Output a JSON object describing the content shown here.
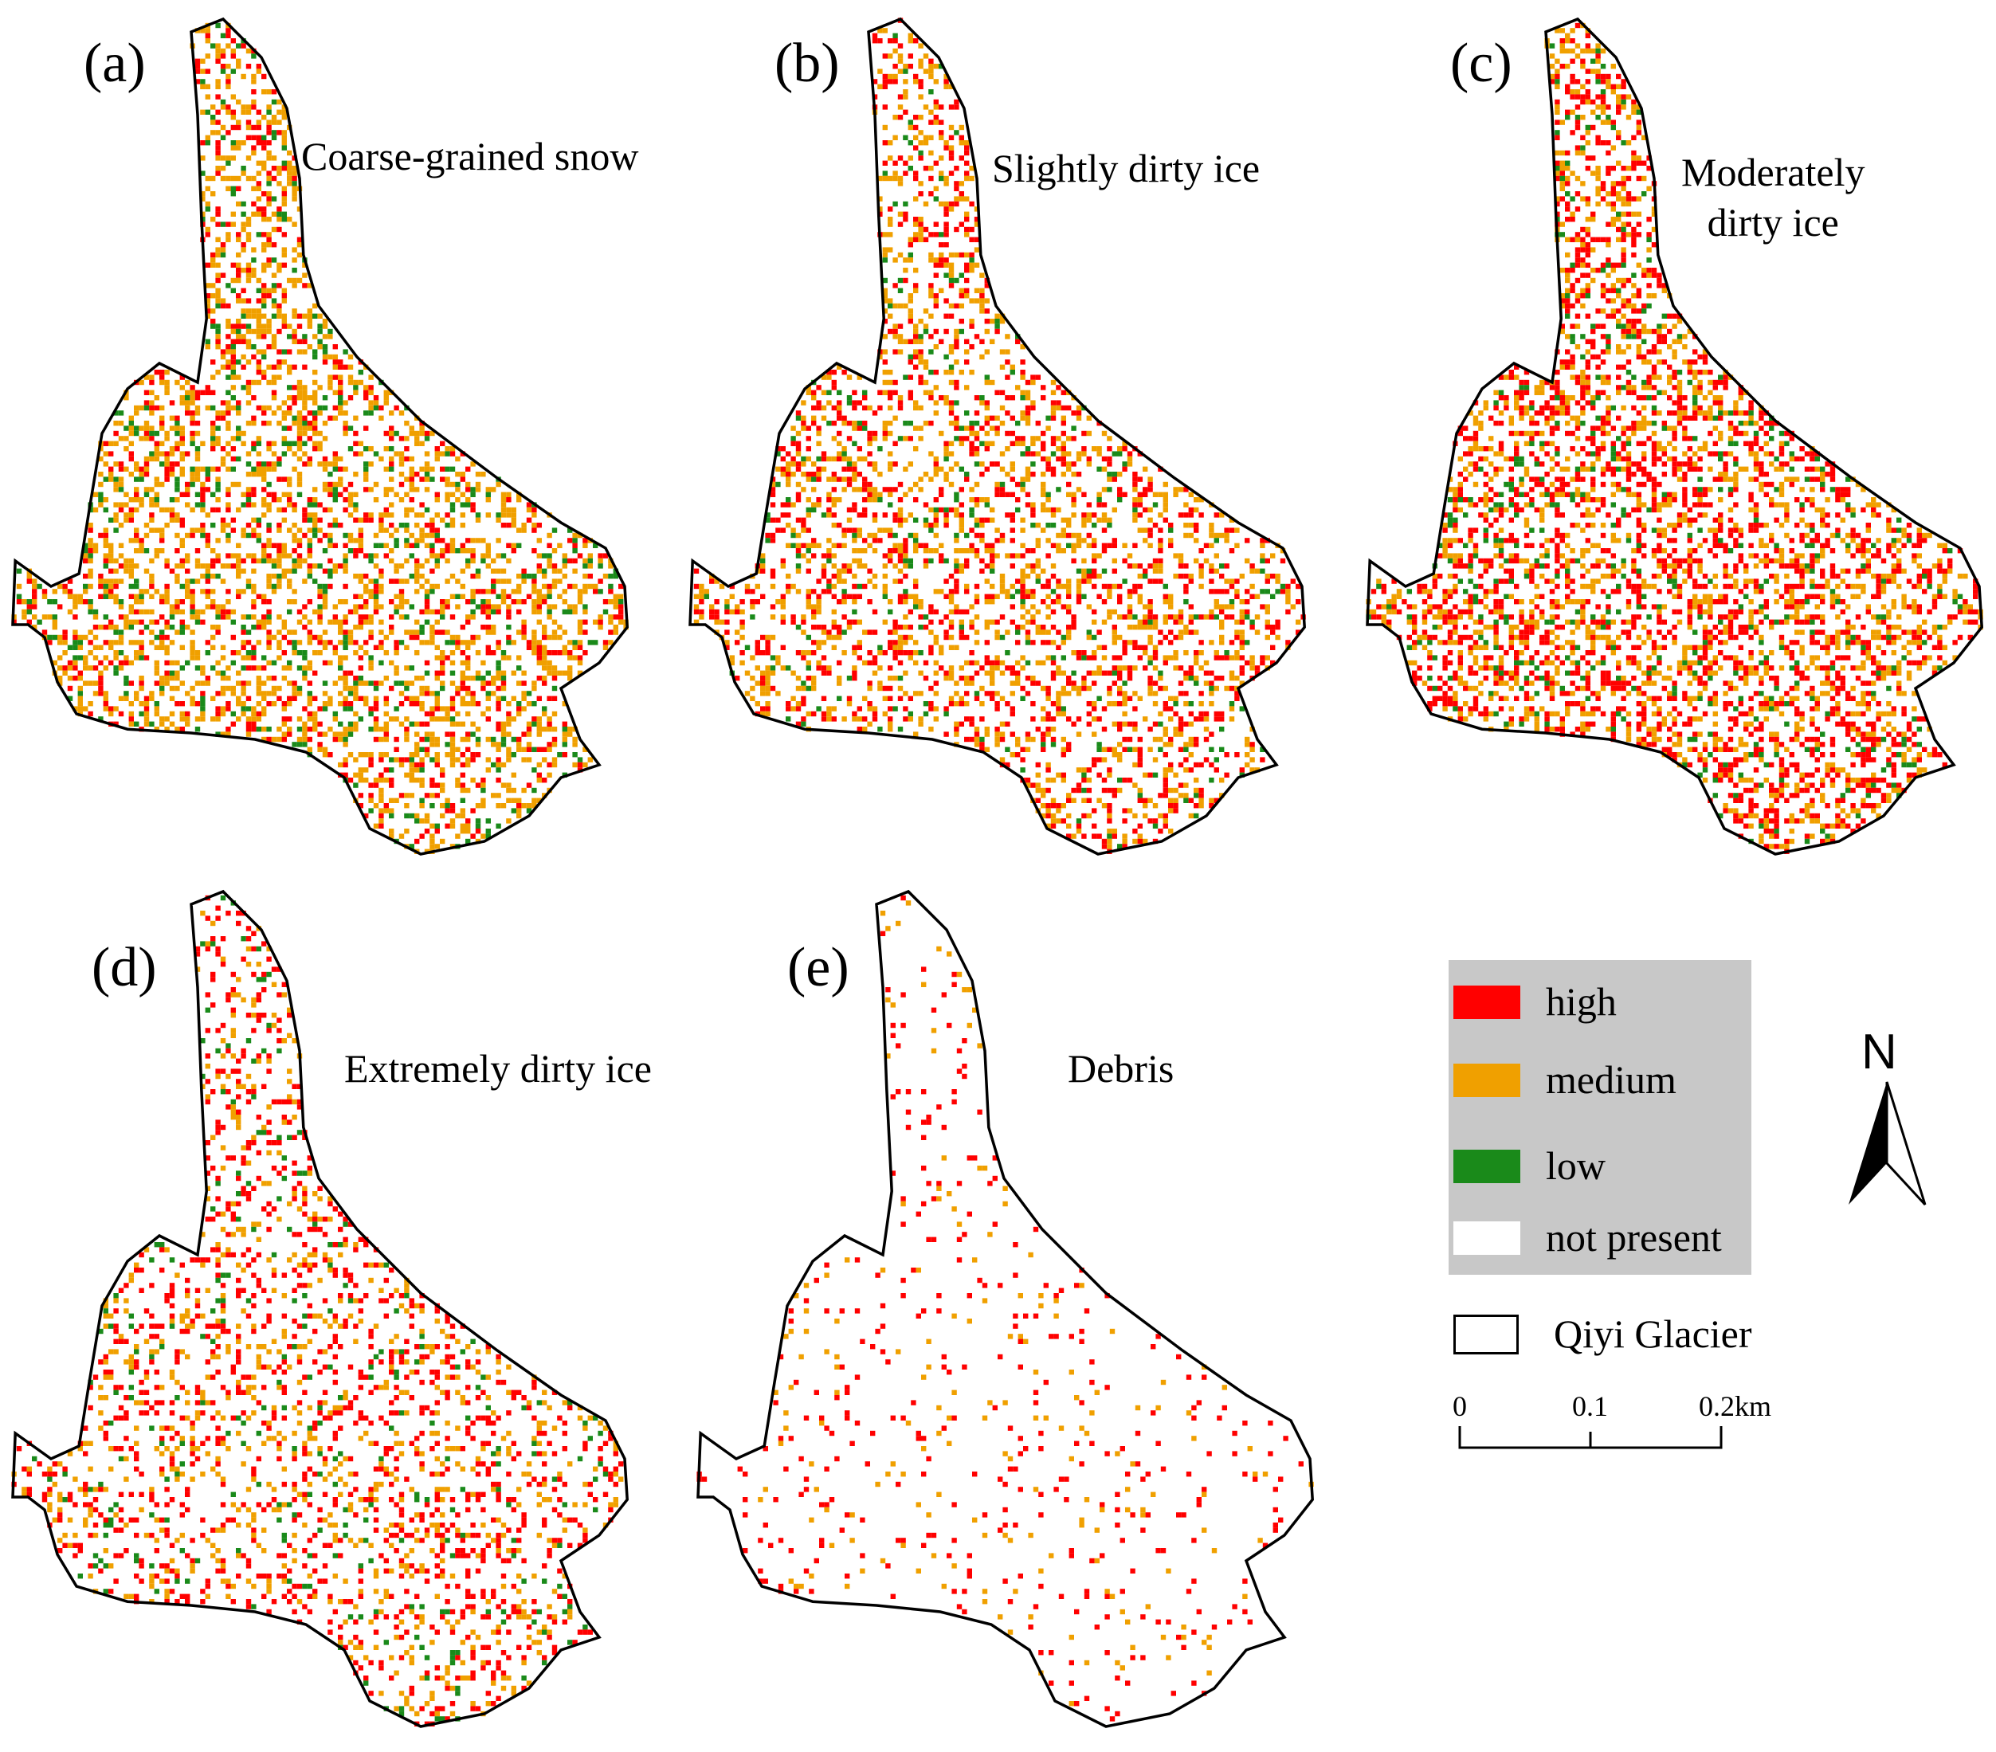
{
  "figure": {
    "panels": [
      {
        "letter": "(a)",
        "title_lines": [
          "Coarse-grained snow"
        ],
        "class": "coarse_grained_snow"
      },
      {
        "letter": "(b)",
        "title_lines": [
          "Slightly dirty ice"
        ],
        "class": "slightly_dirty_ice"
      },
      {
        "letter": "(c)",
        "title_lines": [
          "Moderately",
          "dirty ice"
        ],
        "class": "moderately_dirty_ice"
      },
      {
        "letter": "(d)",
        "title_lines": [
          "Extremely dirty ice"
        ],
        "class": "extremely_dirty_ice"
      },
      {
        "letter": "(e)",
        "title_lines": [
          "Debris"
        ],
        "class": "debris"
      }
    ]
  },
  "legend": {
    "items": [
      {
        "label": "high",
        "color": "#ff0000"
      },
      {
        "label": "medium",
        "color": "#f0a000"
      },
      {
        "label": "low",
        "color": "#1a8a1a"
      },
      {
        "label": "not present",
        "color": "#ffffff"
      }
    ],
    "background": "#c8c8c8",
    "glacier_label": "Qiyi Glacier"
  },
  "scale_bar": {
    "labels": [
      "0",
      "0.1",
      "0.2km"
    ]
  },
  "north_arrow": {
    "letter": "N"
  },
  "map_style": {
    "outline_color": "#000000",
    "abundance": {
      "coarse_grained_snow": {
        "high": 0.1,
        "medium": 0.22,
        "low": 0.06
      },
      "slightly_dirty_ice": {
        "high": 0.14,
        "medium": 0.15,
        "low": 0.03
      },
      "moderately_dirty_ice": {
        "high": 0.2,
        "medium": 0.16,
        "low": 0.05
      },
      "extremely_dirty_ice": {
        "high": 0.12,
        "medium": 0.08,
        "low": 0.03
      },
      "debris": {
        "high": 0.04,
        "medium": 0.02,
        "low": 0.0
      }
    }
  }
}
